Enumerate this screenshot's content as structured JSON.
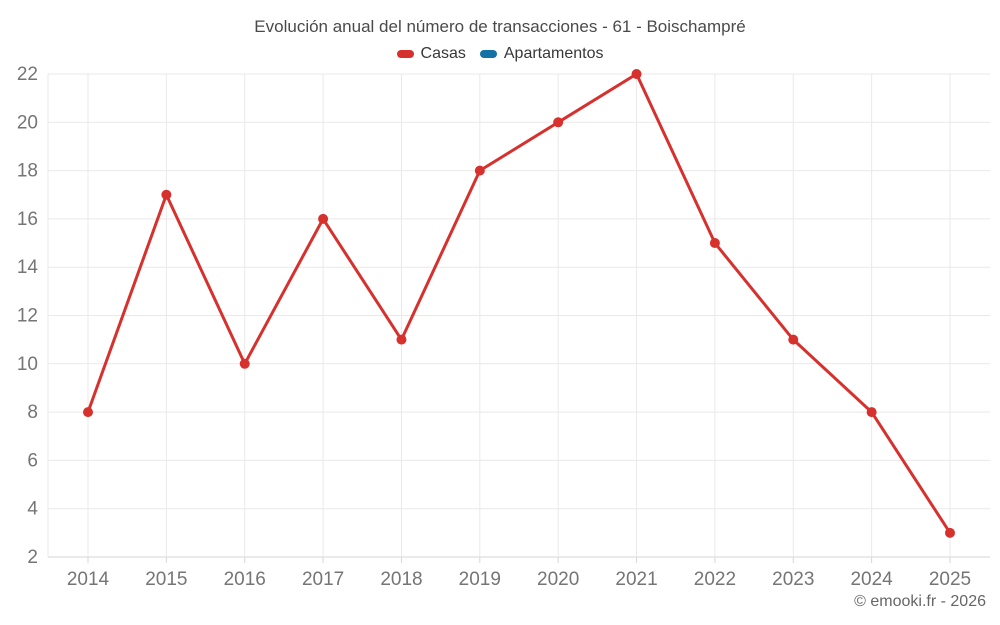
{
  "title": "Evolución anual del número de transacciones - 61 - Boischampré",
  "footer": "© emooki.fr - 2026",
  "colors": {
    "casas": "#d7312e",
    "apartamentos": "#1272a5",
    "grid": "#e9e9e9",
    "axis_line": "#d6d6d6",
    "tick_label": "#757575",
    "title_text": "#4a4a4a",
    "legend_text": "#383838",
    "footer_text": "#666666"
  },
  "chart_data": {
    "type": "line",
    "title": "Evolución anual del número de transacciones - 61 - Boischampré",
    "x": [
      2014,
      2015,
      2016,
      2017,
      2018,
      2019,
      2020,
      2021,
      2022,
      2023,
      2024,
      2025
    ],
    "series": [
      {
        "name": "Casas",
        "color": "#d7312e",
        "values": [
          8,
          17,
          10,
          16,
          11,
          18,
          20,
          22,
          15,
          11,
          8,
          3
        ]
      },
      {
        "name": "Apartamentos",
        "color": "#1272a5",
        "values": []
      }
    ],
    "xlabel": "",
    "ylabel": "",
    "ylim": [
      2,
      22
    ],
    "y_ticks": [
      2,
      4,
      6,
      8,
      10,
      12,
      14,
      16,
      18,
      20,
      22
    ],
    "grid": true,
    "legend_position": "top",
    "marker": "circle"
  }
}
